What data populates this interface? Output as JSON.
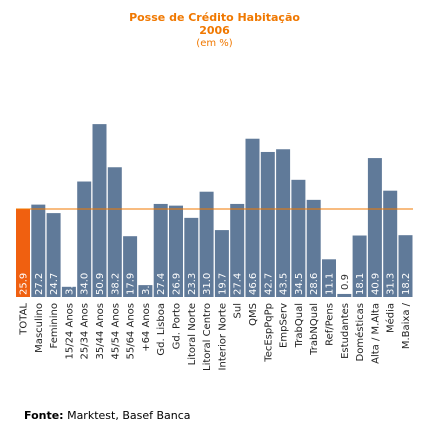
{
  "chart_data": {
    "type": "bar",
    "title": "Posse de Crédito Habitação",
    "subtitle": "2006",
    "unit_note": "(em %)",
    "categories": [
      "TOTAL",
      "Masculino",
      "Feminino",
      "15/24 Anos",
      "25/34 Anos",
      "35/44 Anos",
      "45/54 Anos",
      "55/64 Anos",
      "+64 Anos",
      "Gd. Lisboa",
      "Gd. Porto",
      "Litoral Norte",
      "Litoral Centro",
      "Interior Norte",
      "Sul",
      "QMS",
      "TecEspPqPp",
      "EmpServ",
      "TrabQual",
      "TrabNQual",
      "Ref/Pens",
      "Estudantes",
      "Domésticas",
      "Alta / M.Alta",
      "Média",
      "M.Baixa /"
    ],
    "values": [
      25.9,
      27.2,
      24.7,
      3.0,
      34.0,
      50.9,
      38.2,
      17.9,
      3.5,
      27.4,
      26.9,
      23.3,
      31.0,
      19.7,
      27.4,
      46.6,
      42.7,
      43.5,
      34.5,
      28.6,
      11.1,
      0.9,
      18.1,
      40.9,
      31.3,
      18.2
    ],
    "value_labels": [
      "25.9",
      "27.2",
      "24.7",
      "3.0",
      "34.0",
      "50.9",
      "38.2",
      "17.9",
      "3.5",
      "27.4",
      "26.9",
      "23.3",
      "31.0",
      "19.7",
      "27.4",
      "46.6",
      "42.7",
      "43.5",
      "34.5",
      "28.6",
      "11.1",
      "0.9",
      "18.1",
      "40.9",
      "31.3",
      "18.2"
    ],
    "reference_line": 25.9,
    "ylim": [
      0,
      58
    ],
    "highlight_index": 0,
    "colors": {
      "bar": "#607a99",
      "highlight": "#f06010",
      "reference_line": "#f07800",
      "title": "#f07800"
    },
    "grid": false
  },
  "source": {
    "label": "Fonte:",
    "text": " Marktest, Basef Banca"
  }
}
